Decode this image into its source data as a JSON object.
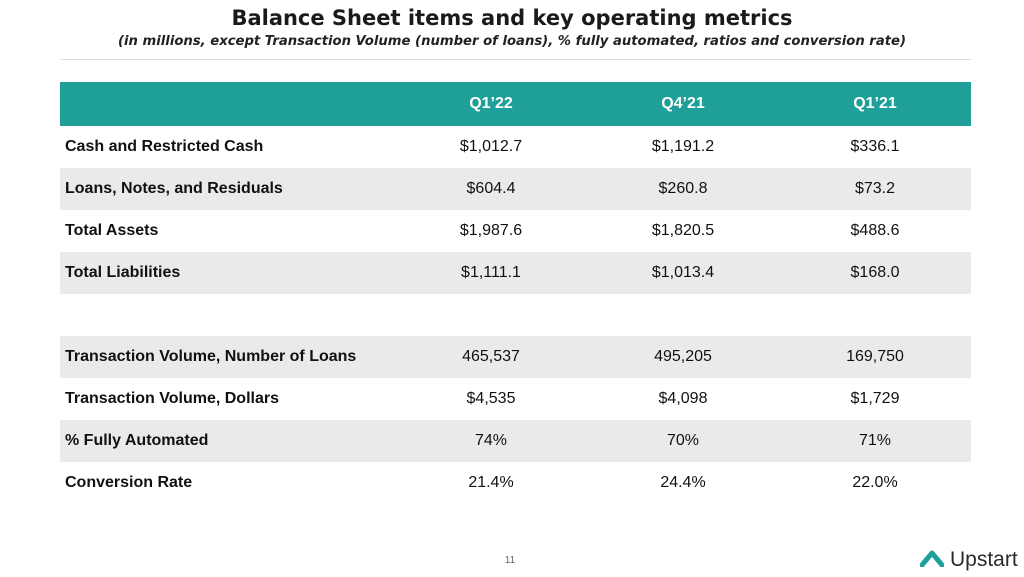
{
  "title": "Balance Sheet items and key operating metrics",
  "subtitle": "(in millions, except Transaction Volume (number of loans), % fully automated, ratios and conversion rate)",
  "table": {
    "headers": [
      "",
      "Q1’22",
      "Q4’21",
      "Q1’21"
    ],
    "section1": [
      {
        "label": "Cash and Restricted Cash",
        "values": [
          "$1,012.7",
          "$1,191.2",
          "$336.1"
        ]
      },
      {
        "label": "Loans, Notes, and Residuals",
        "values": [
          "$604.4",
          "$260.8",
          "$73.2"
        ]
      },
      {
        "label": "Total Assets",
        "values": [
          "$1,987.6",
          "$1,820.5",
          "$488.6"
        ]
      },
      {
        "label": "Total Liabilities",
        "values": [
          "$1,111.1",
          "$1,013.4",
          "$168.0"
        ]
      }
    ],
    "section2": [
      {
        "label": "Transaction Volume, Number of Loans",
        "values": [
          "465,537",
          "495,205",
          "169,750"
        ]
      },
      {
        "label": "Transaction Volume, Dollars",
        "values": [
          "$4,535",
          "$4,098",
          "$1,729"
        ]
      },
      {
        "label": "% Fully Automated",
        "values": [
          "74%",
          "70%",
          "71%"
        ]
      },
      {
        "label": "Conversion Rate",
        "values": [
          "21.4%",
          "24.4%",
          "22.0%"
        ]
      }
    ]
  },
  "page_number": "11",
  "logo": {
    "text": "Upstart",
    "icon": "upstart-chevron-icon",
    "color": "#1e9f98"
  },
  "colors": {
    "header_bg": "#1e9f98",
    "row_shade": "#eaeaea"
  }
}
